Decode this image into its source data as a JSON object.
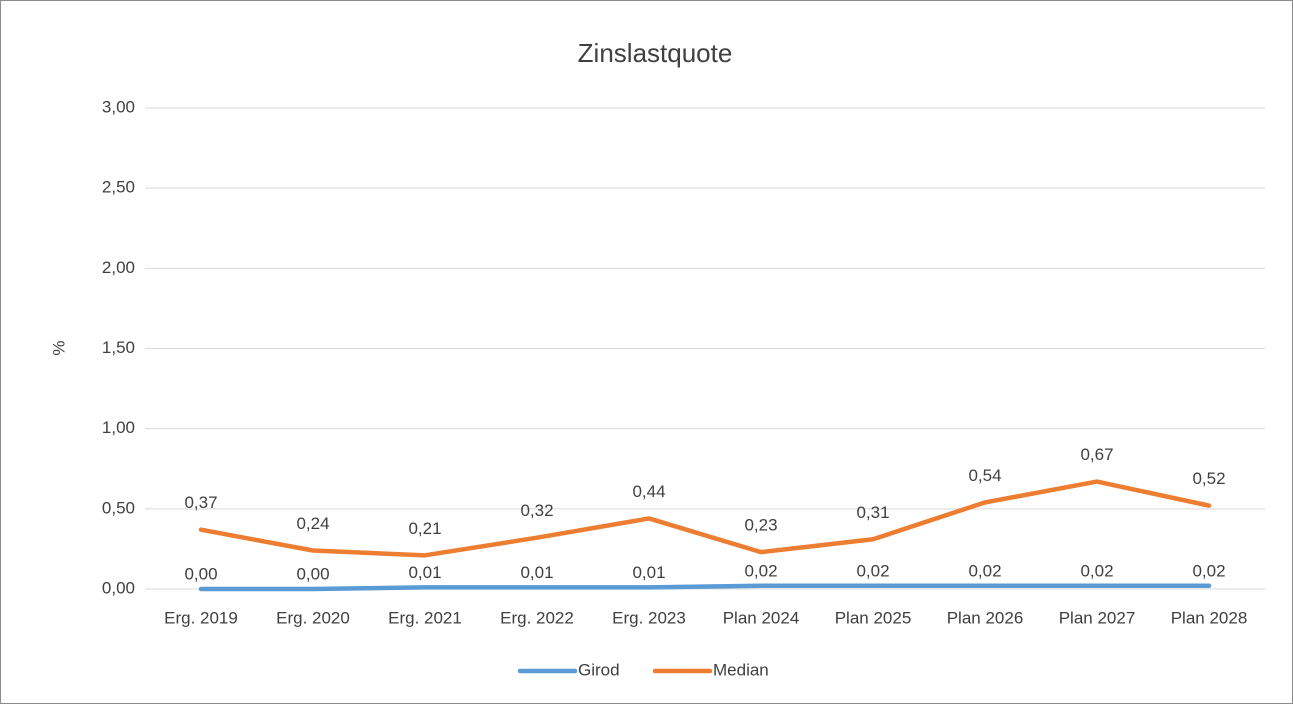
{
  "chart_data": {
    "type": "line",
    "title": "Zinslastquote",
    "y_label": "%",
    "categories": [
      "Erg. 2019",
      "Erg. 2020",
      "Erg. 2021",
      "Erg. 2022",
      "Erg. 2023",
      "Plan 2024",
      "Plan 2025",
      "Plan 2026",
      "Plan 2027",
      "Plan 2028"
    ],
    "series": [
      {
        "name": "Girod",
        "color": "#5b9bd5",
        "values": [
          0,
          0,
          0.01,
          0.01,
          0.01,
          0.02,
          0.02,
          0.02,
          0.02,
          0.02
        ],
        "value_labels": [
          "0,00",
          "0,00",
          "0,01",
          "0,01",
          "0,01",
          "0,02",
          "0,02",
          "0,02",
          "0,02",
          "0,02"
        ]
      },
      {
        "name": "Median",
        "color": "#ed7d31",
        "values": [
          0.37,
          0.24,
          0.21,
          0.32,
          0.44,
          0.23,
          0.31,
          0.54,
          0.67,
          0.52
        ],
        "value_labels": [
          "0,37",
          "0,24",
          "0,21",
          "0,32",
          "0,44",
          "0,23",
          "0,31",
          "0,54",
          "0,67",
          "0,52"
        ]
      }
    ],
    "ylim": [
      0,
      3
    ],
    "yticks": [
      {
        "value": 0,
        "label": "0,00"
      },
      {
        "value": 0.5,
        "label": "0,50"
      },
      {
        "value": 1,
        "label": "1,00"
      },
      {
        "value": 1.5,
        "label": "1,50"
      },
      {
        "value": 2,
        "label": "2,00"
      },
      {
        "value": 2.5,
        "label": "2,50"
      },
      {
        "value": 3,
        "label": "3,00"
      }
    ],
    "grid": true,
    "legend": "bottom"
  }
}
